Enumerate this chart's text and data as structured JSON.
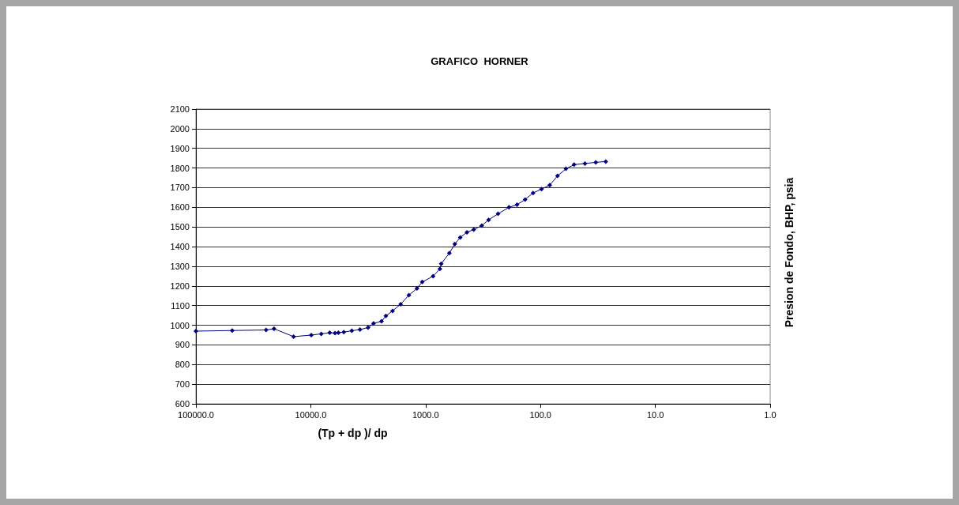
{
  "chart_data": {
    "type": "line",
    "title": "GRAFICO  HORNER",
    "xlabel": "(Tp + dp )/ dp",
    "ylabel": "Presion de Fondo, BHP, psia",
    "log": "x",
    "xlim": [
      100000,
      1
    ],
    "xticks": [
      {
        "value": 100000,
        "label": "100000.0"
      },
      {
        "value": 10000,
        "label": "10000.0"
      },
      {
        "value": 1000,
        "label": "1000.0"
      },
      {
        "value": 100,
        "label": "100.0"
      },
      {
        "value": 10,
        "label": "10.0"
      },
      {
        "value": 1,
        "label": "1.0"
      }
    ],
    "ylim": [
      600,
      2100
    ],
    "yticks": [
      600,
      700,
      800,
      900,
      1000,
      1100,
      1200,
      1300,
      1400,
      1500,
      1600,
      1700,
      1800,
      1900,
      2000,
      2100
    ],
    "grid": "y",
    "marker": "diamond",
    "line_style": "solid",
    "series": [
      {
        "color": "#000080",
        "x": [
          100000,
          48300,
          24500,
          20900,
          14100,
          9900,
          8100,
          6840,
          6150,
          5750,
          5160,
          4390,
          3730,
          3170,
          2840,
          2420,
          2220,
          1940,
          1650,
          1400,
          1190,
          1070,
          861,
          751,
          731,
          621,
          557,
          500,
          437,
          381,
          324,
          283,
          234,
          188,
          160,
          136,
          116,
          98,
          83,
          71,
          60,
          51,
          41,
          33,
          27
        ],
        "values": [
          970,
          973,
          976,
          982,
          942,
          950,
          956,
          962,
          960,
          962,
          965,
          972,
          978,
          988,
          1009,
          1020,
          1047,
          1073,
          1107,
          1153,
          1187,
          1220,
          1249,
          1287,
          1313,
          1367,
          1413,
          1447,
          1473,
          1487,
          1507,
          1536,
          1567,
          1600,
          1613,
          1640,
          1673,
          1693,
          1713,
          1760,
          1796,
          1817,
          1823,
          1829,
          1833
        ]
      }
    ]
  }
}
